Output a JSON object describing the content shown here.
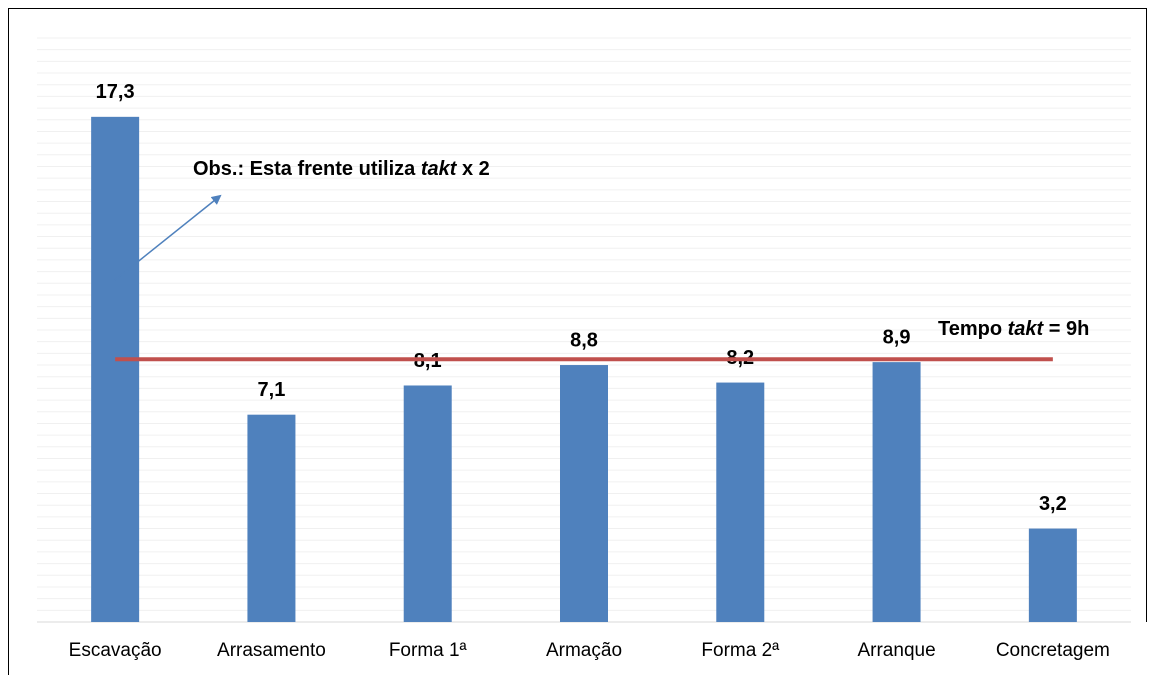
{
  "chart_data": {
    "type": "bar",
    "categories": [
      "Escavação",
      "Arrasamento",
      "Forma 1ª",
      "Armação",
      "Forma 2ª",
      "Arranque",
      "Concretagem"
    ],
    "values": [
      17.3,
      7.1,
      8.1,
      8.8,
      8.2,
      8.9,
      3.2
    ],
    "value_labels": [
      "17,3",
      "7,1",
      "8,1",
      "8,8",
      "8,2",
      "8,9",
      "3,2"
    ],
    "color": "#4f81bd",
    "ylim": [
      0,
      20
    ],
    "grid": true,
    "reference_line": {
      "value": 9,
      "color": "#c0504d",
      "label_parts": [
        "Tempo",
        "takt",
        "= 9h"
      ]
    },
    "annotation": {
      "parts": [
        "Obs.: Esta frente utiliza",
        "takt",
        "x 2"
      ],
      "color": "#4f81bd"
    }
  }
}
